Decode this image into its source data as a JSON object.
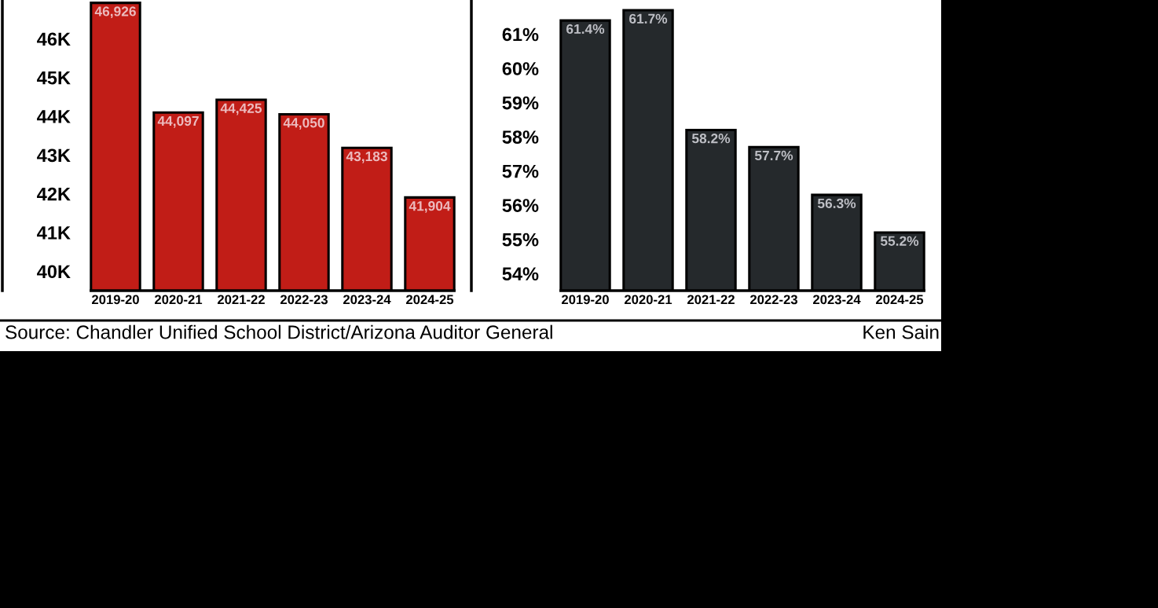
{
  "chart_data": [
    {
      "type": "bar",
      "categories": [
        "2019-20",
        "2020-21",
        "2021-22",
        "2022-23",
        "2023-24",
        "2024-25"
      ],
      "values": [
        46926,
        44097,
        44425,
        44050,
        43183,
        41904
      ],
      "value_labels": [
        "46,926",
        "44,097",
        "44,425",
        "44,050",
        "43,183",
        "41,904"
      ],
      "color": "#c11d17",
      "ylim": [
        39500,
        47000
      ],
      "yticks": [
        {
          "value": 40000,
          "label": "40K"
        },
        {
          "value": 41000,
          "label": "41K"
        },
        {
          "value": 42000,
          "label": "42K"
        },
        {
          "value": 43000,
          "label": "43K"
        },
        {
          "value": 44000,
          "label": "44K"
        },
        {
          "value": 45000,
          "label": "45K"
        },
        {
          "value": 46000,
          "label": "46K"
        }
      ],
      "annotations": [
        "Source: Chandler Unified School District/Arizona Auditor General"
      ]
    },
    {
      "type": "bar",
      "categories": [
        "2019-20",
        "2020-21",
        "2021-22",
        "2022-23",
        "2023-24",
        "2024-25"
      ],
      "values": [
        61.4,
        61.7,
        58.2,
        57.7,
        56.3,
        55.2
      ],
      "value_labels": [
        "61.4%",
        "61.7%",
        "58.2%",
        "57.7%",
        "56.3%",
        "55.2%"
      ],
      "color": "#25292c",
      "ylim": [
        53.5,
        62
      ],
      "yticks": [
        {
          "value": 54,
          "label": "54%"
        },
        {
          "value": 55,
          "label": "55%"
        },
        {
          "value": 56,
          "label": "56%"
        },
        {
          "value": 57,
          "label": "57%"
        },
        {
          "value": 58,
          "label": "58%"
        },
        {
          "value": 59,
          "label": "59%"
        },
        {
          "value": 60,
          "label": "60%"
        },
        {
          "value": 61,
          "label": "61%"
        }
      ],
      "annotations": [
        "Ken Sain"
      ]
    }
  ]
}
